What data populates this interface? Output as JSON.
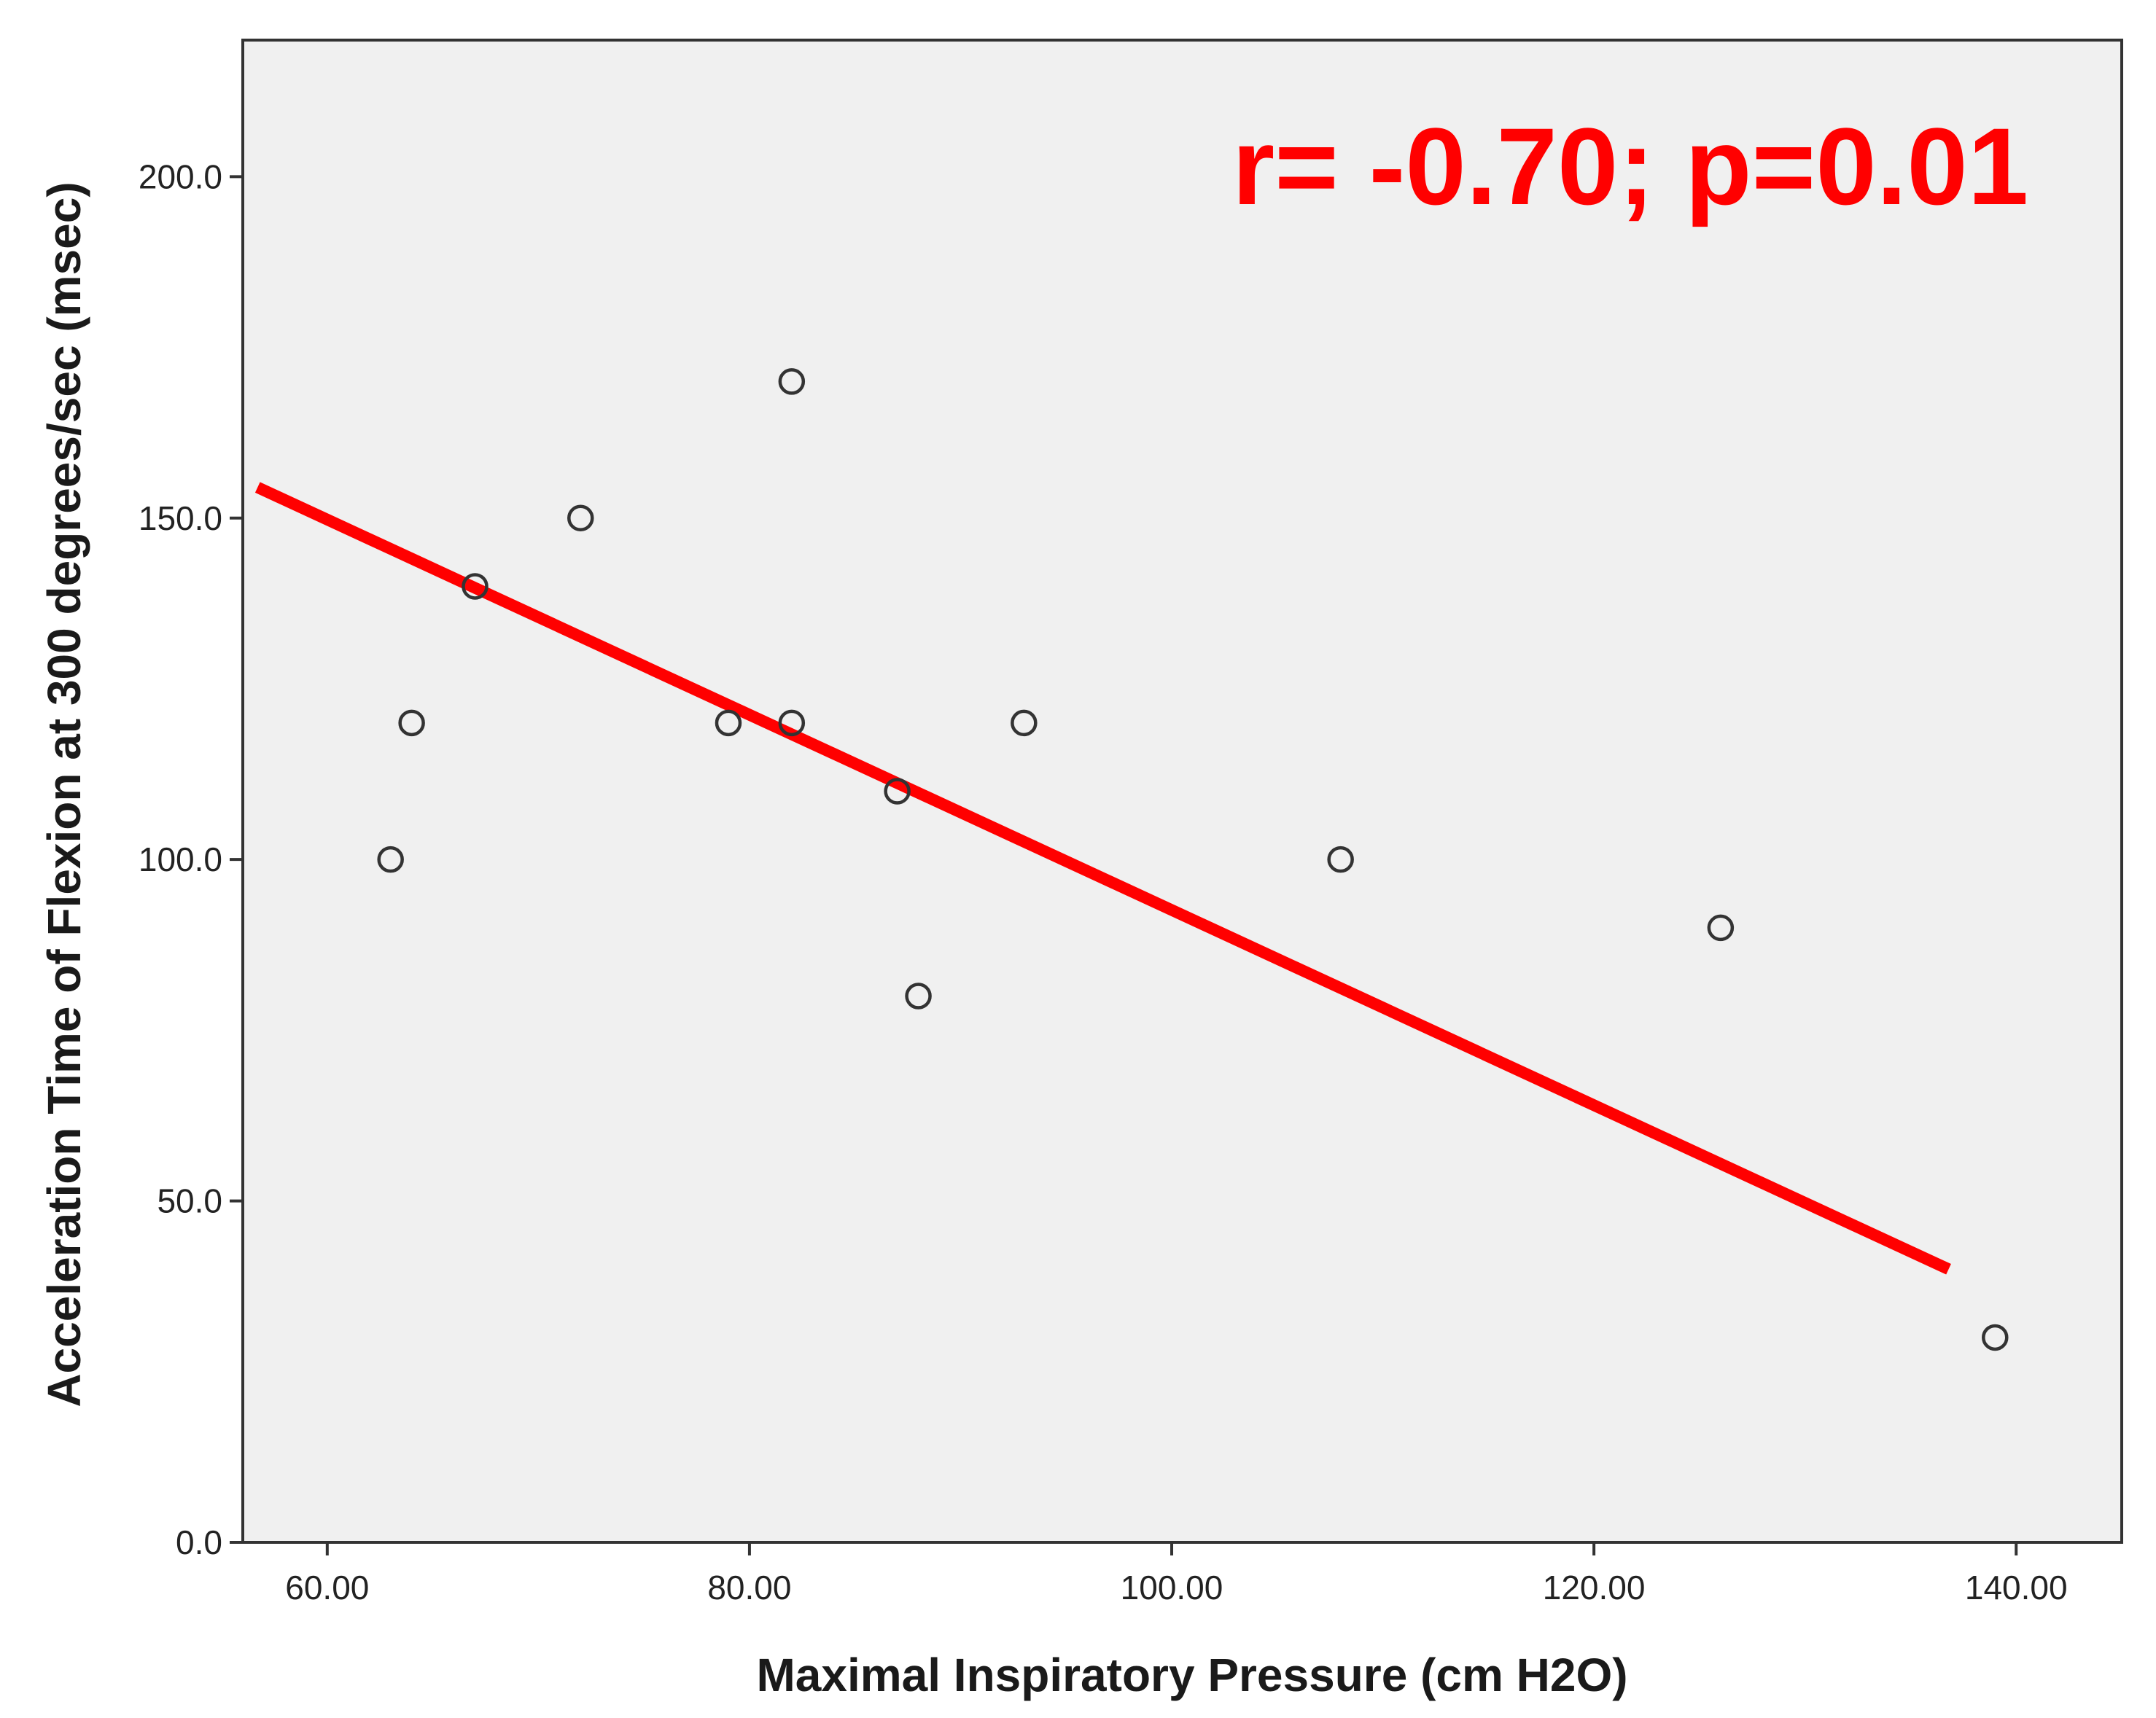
{
  "chart_data": {
    "type": "scatter",
    "title": "",
    "xlabel": "Maximal Inspiratory Pressure (cm H2O)",
    "ylabel": "Acceleration Time of Flexion at 300 degrees/sec (msec)",
    "xlim": [
      56,
      145
    ],
    "ylim": [
      0,
      220
    ],
    "x_ticks": [
      60,
      80,
      100,
      120,
      140
    ],
    "x_tick_labels": [
      "60.00",
      "80.00",
      "100.00",
      "120.00",
      "140.00"
    ],
    "y_ticks": [
      0,
      50,
      100,
      150,
      200
    ],
    "y_tick_labels": [
      "0.0",
      "50.0",
      "100.0",
      "150.0",
      "200.0"
    ],
    "grid": false,
    "background_color": "#f0f0f0",
    "series": [
      {
        "x": [
          63,
          64,
          67,
          72,
          79,
          82,
          82,
          87,
          88,
          93,
          108,
          126,
          139
        ],
        "y": [
          100,
          120,
          140,
          150,
          120,
          170,
          120,
          110,
          80,
          120,
          100,
          90,
          30
        ],
        "marker": "open-circle",
        "color": "#333333"
      }
    ],
    "fit_line": {
      "x": [
        56.7,
        136.8
      ],
      "y": [
        154.5,
        40.0
      ],
      "color": "#ff0000"
    },
    "annotations": [
      {
        "text": "r= -0.70; p=0.01",
        "color": "#ff0000"
      }
    ]
  }
}
